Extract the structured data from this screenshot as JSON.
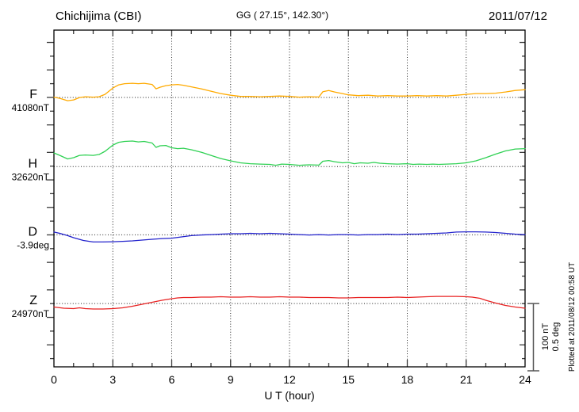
{
  "header": {
    "station": "Chichijima (CBI)",
    "coordinates": "GG ( 27.15°, 142.30°)",
    "date": "2011/07/12"
  },
  "footer": {
    "plotted_at": "Plotted at 2011/08/12 00:58 UT"
  },
  "scale_bar": {
    "nt_label": "100 nT",
    "deg_label": "0.5 deg"
  },
  "chart_data": {
    "type": "line",
    "title": "Chichijima (CBI)",
    "xlabel": "U T (hour)",
    "x_range": [
      0,
      24
    ],
    "x_ticks": [
      0,
      3,
      6,
      9,
      12,
      15,
      18,
      21,
      24
    ],
    "grid": "vertical dotted every 3 hours, dotted horizontal baseline per channel",
    "scale_note": "bar at right = 100 nT for F/H/Z and 0.5 deg for D",
    "series": [
      {
        "id": "F",
        "label": "F",
        "baseline_label": "41080nT",
        "base_value": 41080,
        "unit": "nT",
        "color": "#ffaa00",
        "points": [
          [
            0,
            41080.5
          ],
          [
            0.3,
            41078.7
          ],
          [
            0.7,
            41075.3
          ],
          [
            1,
            41076.4
          ],
          [
            1.3,
            41079.9
          ],
          [
            1.6,
            41081
          ],
          [
            2,
            41080.5
          ],
          [
            2.3,
            41081
          ],
          [
            2.6,
            41084.5
          ],
          [
            3,
            41093.7
          ],
          [
            3.3,
            41098.3
          ],
          [
            3.6,
            41100.1
          ],
          [
            4,
            41100.6
          ],
          [
            4.3,
            41100.1
          ],
          [
            4.6,
            41100.6
          ],
          [
            5,
            41098.9
          ],
          [
            5.2,
            41092.6
          ],
          [
            5.4,
            41094.9
          ],
          [
            5.7,
            41097.2
          ],
          [
            6,
            41098.3
          ],
          [
            6.3,
            41098.9
          ],
          [
            6.6,
            41097.7
          ],
          [
            7,
            41095.4
          ],
          [
            7.5,
            41092.6
          ],
          [
            8,
            41089.1
          ],
          [
            8.5,
            41085.6
          ],
          [
            9,
            41083.2
          ],
          [
            9.5,
            41081.5
          ],
          [
            10,
            41081.5
          ],
          [
            10.5,
            41081
          ],
          [
            11,
            41081.5
          ],
          [
            11.5,
            41082.1
          ],
          [
            12,
            41081.5
          ],
          [
            12.5,
            41080.5
          ],
          [
            13,
            41081
          ],
          [
            13.5,
            41080.7
          ],
          [
            13.7,
            41088.4
          ],
          [
            14,
            41090.2
          ],
          [
            14.3,
            41087.9
          ],
          [
            14.7,
            41085.6
          ],
          [
            15,
            41083.8
          ],
          [
            15.5,
            41082.7
          ],
          [
            16,
            41083.2
          ],
          [
            16.5,
            41082.1
          ],
          [
            17,
            41082.7
          ],
          [
            17.5,
            41082.1
          ],
          [
            18,
            41082.1
          ],
          [
            18.5,
            41082.7
          ],
          [
            19,
            41082.1
          ],
          [
            19.5,
            41082.7
          ],
          [
            20,
            41082.1
          ],
          [
            20.5,
            41083.2
          ],
          [
            21,
            41084.5
          ],
          [
            21.5,
            41085.6
          ],
          [
            22,
            41085.6
          ],
          [
            22.5,
            41086.2
          ],
          [
            23,
            41087.9
          ],
          [
            23.5,
            41090.2
          ],
          [
            24,
            41091.3
          ]
        ]
      },
      {
        "id": "H",
        "label": "H",
        "baseline_label": "32620nT",
        "base_value": 32620,
        "unit": "nT",
        "color": "#2fd153",
        "points": [
          [
            0,
            32639.9
          ],
          [
            0.3,
            32636.4
          ],
          [
            0.7,
            32631.2
          ],
          [
            1,
            32633
          ],
          [
            1.3,
            32636.4
          ],
          [
            1.6,
            32637
          ],
          [
            2,
            32636.4
          ],
          [
            2.3,
            32637.6
          ],
          [
            2.6,
            32642.2
          ],
          [
            3,
            32651.4
          ],
          [
            3.3,
            32655.4
          ],
          [
            3.6,
            32656.6
          ],
          [
            4,
            32657.2
          ],
          [
            4.3,
            32656
          ],
          [
            4.6,
            32656.6
          ],
          [
            5,
            32654.3
          ],
          [
            5.2,
            32648
          ],
          [
            5.4,
            32650.3
          ],
          [
            5.7,
            32650.8
          ],
          [
            6,
            32647.4
          ],
          [
            6.3,
            32646.2
          ],
          [
            6.6,
            32646.8
          ],
          [
            7,
            32644.5
          ],
          [
            7.5,
            32641
          ],
          [
            8,
            32636.4
          ],
          [
            8.5,
            32631.8
          ],
          [
            9,
            32628.4
          ],
          [
            9.5,
            32625.5
          ],
          [
            10,
            32624.3
          ],
          [
            10.5,
            32623.7
          ],
          [
            11,
            32623.2
          ],
          [
            11.3,
            32622
          ],
          [
            11.6,
            32623.7
          ],
          [
            12,
            32623.2
          ],
          [
            12.5,
            32622
          ],
          [
            13,
            32622.6
          ],
          [
            13.5,
            32622.2
          ],
          [
            13.7,
            32627.8
          ],
          [
            14,
            32628.9
          ],
          [
            14.3,
            32627.2
          ],
          [
            14.7,
            32625.5
          ],
          [
            15,
            32626.1
          ],
          [
            15.3,
            32624.3
          ],
          [
            15.6,
            32625.5
          ],
          [
            16,
            32624.9
          ],
          [
            16.3,
            32626.1
          ],
          [
            16.6,
            32624.9
          ],
          [
            17,
            32624.3
          ],
          [
            17.5,
            32623.7
          ],
          [
            18,
            32624.3
          ],
          [
            18.3,
            32623.2
          ],
          [
            18.6,
            32623.7
          ],
          [
            19,
            32623.2
          ],
          [
            19.3,
            32623.7
          ],
          [
            19.6,
            32623.2
          ],
          [
            20,
            32623.7
          ],
          [
            20.5,
            32624.3
          ],
          [
            21,
            32625.5
          ],
          [
            21.5,
            32628.4
          ],
          [
            22,
            32633
          ],
          [
            22.5,
            32638.2
          ],
          [
            23,
            32642.8
          ],
          [
            23.5,
            32645.6
          ],
          [
            24,
            32646.2
          ]
        ]
      },
      {
        "id": "D",
        "label": "D",
        "baseline_label": "-3.9deg",
        "base_value": -3.9,
        "unit": "deg",
        "color": "#2222cc",
        "points": [
          [
            0,
            -3.88
          ],
          [
            0.3,
            -3.889
          ],
          [
            0.7,
            -3.906
          ],
          [
            1,
            -3.921
          ],
          [
            1.5,
            -3.941
          ],
          [
            2,
            -3.952
          ],
          [
            2.5,
            -3.952
          ],
          [
            3,
            -3.95
          ],
          [
            3.5,
            -3.947
          ],
          [
            4,
            -3.944
          ],
          [
            4.5,
            -3.938
          ],
          [
            5,
            -3.932
          ],
          [
            5.5,
            -3.927
          ],
          [
            6,
            -3.924
          ],
          [
            6.5,
            -3.915
          ],
          [
            7,
            -3.906
          ],
          [
            7.5,
            -3.901
          ],
          [
            8,
            -3.898
          ],
          [
            8.5,
            -3.895
          ],
          [
            9,
            -3.892
          ],
          [
            9.5,
            -3.892
          ],
          [
            10,
            -3.889
          ],
          [
            10.5,
            -3.892
          ],
          [
            11,
            -3.889
          ],
          [
            11.5,
            -3.892
          ],
          [
            12,
            -3.895
          ],
          [
            12.5,
            -3.898
          ],
          [
            13,
            -3.901
          ],
          [
            13.5,
            -3.898
          ],
          [
            14,
            -3.901
          ],
          [
            14.5,
            -3.898
          ],
          [
            15,
            -3.898
          ],
          [
            15.5,
            -3.901
          ],
          [
            16,
            -3.898
          ],
          [
            16.5,
            -3.898
          ],
          [
            17,
            -3.895
          ],
          [
            17.5,
            -3.898
          ],
          [
            18,
            -3.895
          ],
          [
            18.5,
            -3.895
          ],
          [
            19,
            -3.892
          ],
          [
            19.5,
            -3.889
          ],
          [
            20,
            -3.886
          ],
          [
            20.5,
            -3.88
          ],
          [
            21,
            -3.878
          ],
          [
            21.5,
            -3.878
          ],
          [
            22,
            -3.88
          ],
          [
            22.5,
            -3.883
          ],
          [
            23,
            -3.889
          ],
          [
            23.5,
            -3.895
          ],
          [
            24,
            -3.898
          ]
        ]
      },
      {
        "id": "Z",
        "label": "Z",
        "baseline_label": "24970nT",
        "base_value": 24970,
        "unit": "nT",
        "color": "#e82222",
        "points": [
          [
            0,
            24964.9
          ],
          [
            0.5,
            24963.2
          ],
          [
            1,
            24962.6
          ],
          [
            1.3,
            24963.8
          ],
          [
            1.6,
            24962.6
          ],
          [
            2,
            24962
          ],
          [
            2.5,
            24962
          ],
          [
            3,
            24962.6
          ],
          [
            3.5,
            24963.8
          ],
          [
            4,
            24966.1
          ],
          [
            4.5,
            24969
          ],
          [
            5,
            24971.8
          ],
          [
            5.5,
            24974.7
          ],
          [
            6,
            24977
          ],
          [
            6.3,
            24978.2
          ],
          [
            6.6,
            24978.8
          ],
          [
            7,
            24978.8
          ],
          [
            7.5,
            24979.3
          ],
          [
            8,
            24979.3
          ],
          [
            8.5,
            24979.9
          ],
          [
            9,
            24979.3
          ],
          [
            9.5,
            24979.3
          ],
          [
            10,
            24979.9
          ],
          [
            10.5,
            24979.3
          ],
          [
            11,
            24979.3
          ],
          [
            11.5,
            24979.9
          ],
          [
            12,
            24979.3
          ],
          [
            12.5,
            24979.3
          ],
          [
            13,
            24978.8
          ],
          [
            13.5,
            24978.8
          ],
          [
            14,
            24978.8
          ],
          [
            14.5,
            24978.2
          ],
          [
            15,
            24978.2
          ],
          [
            15.5,
            24978.8
          ],
          [
            16,
            24978.8
          ],
          [
            16.5,
            24978.8
          ],
          [
            17,
            24978.8
          ],
          [
            17.5,
            24979.3
          ],
          [
            18,
            24978.8
          ],
          [
            18.5,
            24979.3
          ],
          [
            19,
            24979.9
          ],
          [
            19.5,
            24980.4
          ],
          [
            20,
            24980.4
          ],
          [
            20.5,
            24980.4
          ],
          [
            21,
            24979.9
          ],
          [
            21.3,
            24979.3
          ],
          [
            21.7,
            24977.6
          ],
          [
            22,
            24974.7
          ],
          [
            22.5,
            24970.7
          ],
          [
            23,
            24967.2
          ],
          [
            23.5,
            24964.9
          ],
          [
            24,
            24963.2
          ]
        ]
      }
    ]
  }
}
